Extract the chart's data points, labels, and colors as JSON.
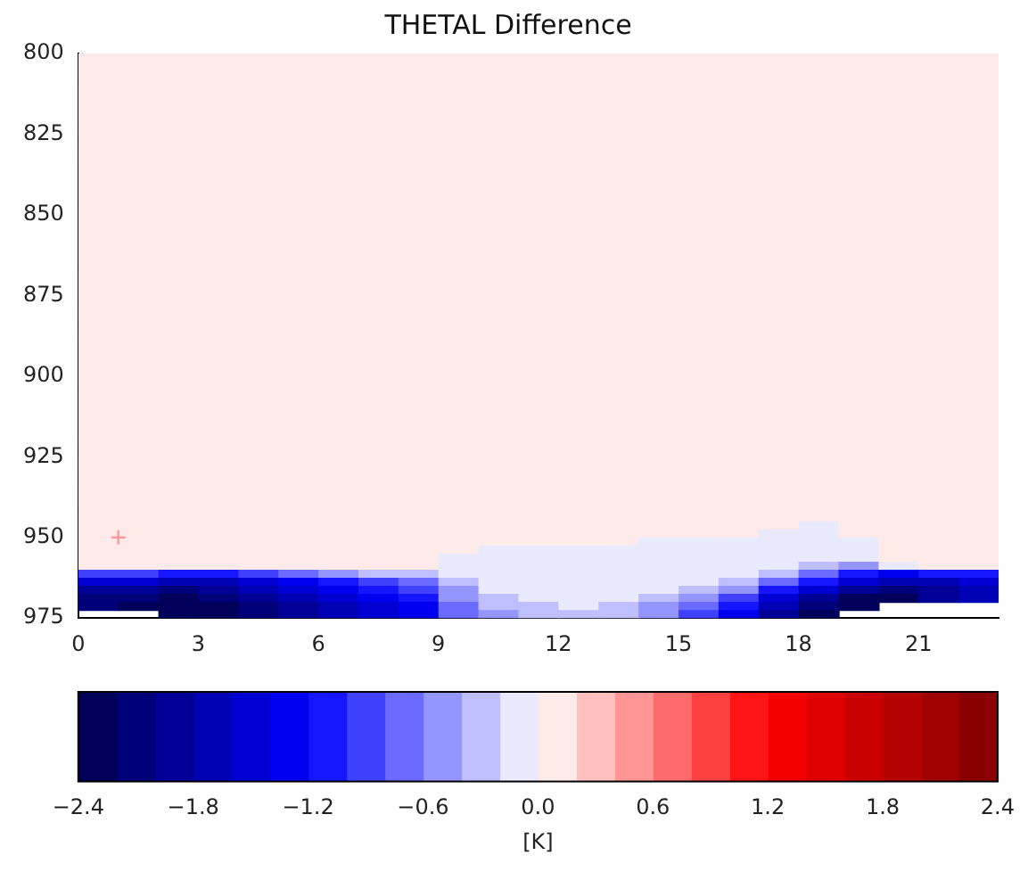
{
  "chart_data": {
    "type": "heatmap",
    "title": "THETAL Difference",
    "clabel": "[K]",
    "x": [
      0.5,
      1.5,
      2.5,
      3.5,
      4.5,
      5.5,
      6.5,
      7.5,
      8.5,
      9.5,
      10.5,
      11.5,
      12.5,
      13.5,
      14.5,
      15.5,
      16.5,
      17.5,
      18.5,
      19.5,
      20.5,
      21.5,
      22.5
    ],
    "y": [
      801.25,
      803.75,
      806.25,
      808.75,
      811.25,
      813.75,
      816.25,
      818.75,
      821.25,
      823.75,
      826.25,
      828.75,
      831.25,
      833.75,
      836.25,
      838.75,
      841.25,
      843.75,
      846.25,
      848.75,
      851.25,
      853.75,
      856.25,
      858.75,
      861.25,
      863.75,
      866.25,
      868.75,
      871.25,
      873.75,
      876.25,
      878.75,
      881.25,
      883.75,
      886.25,
      888.75,
      891.25,
      893.75,
      896.25,
      898.75,
      901.25,
      903.75,
      906.25,
      908.75,
      911.25,
      913.75,
      916.25,
      918.75,
      921.25,
      923.75,
      926.25,
      928.75,
      931.25,
      933.75,
      936.25,
      938.75,
      941.25,
      943.75,
      946.25,
      948.75,
      951.25,
      953.75,
      956.25,
      958.75,
      961.25,
      963.75,
      966.25,
      968.75,
      971.25,
      973.75
    ],
    "xlim": [
      0,
      23
    ],
    "xticks": [
      0,
      3,
      6,
      9,
      12,
      15,
      18,
      21
    ],
    "ylim": [
      975,
      800
    ],
    "yticks": [
      800,
      825,
      850,
      875,
      900,
      925,
      950,
      975
    ],
    "clim": [
      -2.4,
      2.4
    ],
    "cticks": [
      {
        "value": -2.4,
        "label": "−2.4"
      },
      {
        "value": -1.8,
        "label": "−1.8"
      },
      {
        "value": -1.2,
        "label": "−1.2"
      },
      {
        "value": -0.6,
        "label": "−0.6"
      },
      {
        "value": 0,
        "label": "0.0"
      },
      0.6,
      1.2,
      1.8,
      2.4
    ],
    "marker": "cross",
    "series": [
      {
        "type": "scatter",
        "x": [
          1
        ],
        "values": [
          950
        ],
        "color": "#ff9999"
      }
    ],
    "cells": [
      [
        0.1,
        0.1,
        0.1,
        0.1,
        0.1,
        0.1,
        0.1,
        0.1,
        0.1,
        0.1,
        0.1,
        0.1,
        0.1,
        0.1,
        0.1,
        0.1,
        0.1,
        0.1,
        0.1,
        0.1,
        0.1,
        0.1,
        0.1
      ],
      [
        0.1,
        0.1,
        0.1,
        0.1,
        0.1,
        0.1,
        0.1,
        0.1,
        0.1,
        0.1,
        0.1,
        0.1,
        0.1,
        0.1,
        0.1,
        0.1,
        0.1,
        0.1,
        0.1,
        0.1,
        0.1,
        0.1,
        0.1
      ],
      [
        0.1,
        0.1,
        0.1,
        0.1,
        0.1,
        0.1,
        0.1,
        0.1,
        0.1,
        0.1,
        0.1,
        0.1,
        0.1,
        0.1,
        0.1,
        0.1,
        0.1,
        0.1,
        0.1,
        0.1,
        0.1,
        0.1,
        0.1
      ],
      [
        0.1,
        0.1,
        0.1,
        0.1,
        0.1,
        0.1,
        0.1,
        0.1,
        0.1,
        0.1,
        0.1,
        0.1,
        0.1,
        0.1,
        0.1,
        0.1,
        0.1,
        0.1,
        0.1,
        0.1,
        0.1,
        0.1,
        0.1
      ],
      [
        0.1,
        0.1,
        0.1,
        0.1,
        0.1,
        0.1,
        0.1,
        0.1,
        0.1,
        0.1,
        0.1,
        0.1,
        0.1,
        0.1,
        0.1,
        0.1,
        0.1,
        0.1,
        0.1,
        0.1,
        0.1,
        0.1,
        0.1
      ],
      [
        0.1,
        0.1,
        0.1,
        0.1,
        0.1,
        0.1,
        0.1,
        0.1,
        0.1,
        0.1,
        0.1,
        0.1,
        0.1,
        0.1,
        0.1,
        0.1,
        0.1,
        0.1,
        0.1,
        0.1,
        0.1,
        0.1,
        0.1
      ],
      [
        0.1,
        0.1,
        0.1,
        0.1,
        0.1,
        0.1,
        0.1,
        0.1,
        0.1,
        0.1,
        0.1,
        0.1,
        0.1,
        0.1,
        0.1,
        0.1,
        0.1,
        0.1,
        0.1,
        0.1,
        0.1,
        0.1,
        0.1
      ],
      [
        0.1,
        0.1,
        0.1,
        0.1,
        0.1,
        0.1,
        0.1,
        0.1,
        0.1,
        0.1,
        0.1,
        0.1,
        0.1,
        0.1,
        0.1,
        0.1,
        0.1,
        0.1,
        0.1,
        0.1,
        0.1,
        0.1,
        0.1
      ],
      [
        0.1,
        0.1,
        0.1,
        0.1,
        0.1,
        0.1,
        0.1,
        0.1,
        0.1,
        0.1,
        0.1,
        0.1,
        0.1,
        0.1,
        0.1,
        0.1,
        0.1,
        0.1,
        0.1,
        0.1,
        0.1,
        0.1,
        0.1
      ],
      [
        0.1,
        0.1,
        0.1,
        0.1,
        0.1,
        0.1,
        0.1,
        0.1,
        0.1,
        0.1,
        0.1,
        0.1,
        0.1,
        0.1,
        0.1,
        0.1,
        0.1,
        0.1,
        0.1,
        0.1,
        0.1,
        0.1,
        0.1
      ],
      [
        0.1,
        0.1,
        0.1,
        0.1,
        0.1,
        0.1,
        0.1,
        0.1,
        0.1,
        0.1,
        0.1,
        0.1,
        0.1,
        0.1,
        0.1,
        0.1,
        0.1,
        0.1,
        0.1,
        0.1,
        0.1,
        0.1,
        0.1
      ],
      [
        0.1,
        0.1,
        0.1,
        0.1,
        0.1,
        0.1,
        0.1,
        0.1,
        0.1,
        0.1,
        0.1,
        0.1,
        0.1,
        0.1,
        0.1,
        0.1,
        0.1,
        0.1,
        0.1,
        0.1,
        0.1,
        0.1,
        0.1
      ],
      [
        0.1,
        0.1,
        0.1,
        0.1,
        0.1,
        0.1,
        0.1,
        0.1,
        0.1,
        0.1,
        0.1,
        0.1,
        0.1,
        0.1,
        0.1,
        0.1,
        0.1,
        0.1,
        0.1,
        0.1,
        0.1,
        0.1,
        0.1
      ],
      [
        0.1,
        0.1,
        0.1,
        0.1,
        0.1,
        0.1,
        0.1,
        0.1,
        0.1,
        0.1,
        0.1,
        0.1,
        0.1,
        0.1,
        0.1,
        0.1,
        0.1,
        0.1,
        0.1,
        0.1,
        0.1,
        0.1,
        0.1
      ],
      [
        0.1,
        0.1,
        0.1,
        0.1,
        0.1,
        0.1,
        0.1,
        0.1,
        0.1,
        0.1,
        0.1,
        0.1,
        0.1,
        0.1,
        0.1,
        0.1,
        0.1,
        0.1,
        0.1,
        0.1,
        0.1,
        0.1,
        0.1
      ],
      [
        0.1,
        0.1,
        0.1,
        0.1,
        0.1,
        0.1,
        0.1,
        0.1,
        0.1,
        0.1,
        0.1,
        0.1,
        0.1,
        0.1,
        0.1,
        0.1,
        0.1,
        0.1,
        0.1,
        0.1,
        0.1,
        0.1,
        0.1
      ],
      [
        0.1,
        0.1,
        0.1,
        0.1,
        0.1,
        0.1,
        0.1,
        0.1,
        0.1,
        0.1,
        0.1,
        0.1,
        0.1,
        0.1,
        0.1,
        0.1,
        0.1,
        0.1,
        0.1,
        0.1,
        0.1,
        0.1,
        0.1
      ],
      [
        0.1,
        0.1,
        0.1,
        0.1,
        0.1,
        0.1,
        0.1,
        0.1,
        0.1,
        0.1,
        0.1,
        0.1,
        0.1,
        0.1,
        0.1,
        0.1,
        0.1,
        0.1,
        0.1,
        0.1,
        0.1,
        0.1,
        0.1
      ],
      [
        0.1,
        0.1,
        0.1,
        0.1,
        0.1,
        0.1,
        0.1,
        0.1,
        0.1,
        0.1,
        0.1,
        0.1,
        0.1,
        0.1,
        0.1,
        0.1,
        0.1,
        0.1,
        0.1,
        0.1,
        0.1,
        0.1,
        0.1
      ],
      [
        0.1,
        0.1,
        0.1,
        0.1,
        0.1,
        0.1,
        0.1,
        0.1,
        0.1,
        0.1,
        0.1,
        0.1,
        0.1,
        0.1,
        0.1,
        0.1,
        0.1,
        0.1,
        0.1,
        0.1,
        0.1,
        0.1,
        0.1
      ],
      [
        0.1,
        0.1,
        0.1,
        0.1,
        0.1,
        0.1,
        0.1,
        0.1,
        0.1,
        0.1,
        0.1,
        0.1,
        0.1,
        0.1,
        0.1,
        0.1,
        0.1,
        0.1,
        0.1,
        0.1,
        0.1,
        0.1,
        0.1
      ],
      [
        0.1,
        0.1,
        0.1,
        0.1,
        0.1,
        0.1,
        0.1,
        0.1,
        0.1,
        0.1,
        0.1,
        0.1,
        0.1,
        0.1,
        0.1,
        0.1,
        0.1,
        0.1,
        0.1,
        0.1,
        0.1,
        0.1,
        0.1
      ],
      [
        0.1,
        0.1,
        0.1,
        0.1,
        0.1,
        0.1,
        0.1,
        0.1,
        0.1,
        0.1,
        0.1,
        0.1,
        0.1,
        0.1,
        0.1,
        0.1,
        0.1,
        0.1,
        0.1,
        0.1,
        0.1,
        0.1,
        0.1
      ],
      [
        0.1,
        0.1,
        0.1,
        0.1,
        0.1,
        0.1,
        0.1,
        0.1,
        0.1,
        0.1,
        0.1,
        0.1,
        0.1,
        0.1,
        0.1,
        0.1,
        0.1,
        0.1,
        0.1,
        0.1,
        0.1,
        0.1,
        0.1
      ],
      [
        0.1,
        0.1,
        0.1,
        0.1,
        0.1,
        0.1,
        0.1,
        0.1,
        0.1,
        0.1,
        0.1,
        0.1,
        0.1,
        0.1,
        0.1,
        0.1,
        0.1,
        0.1,
        0.1,
        0.1,
        0.1,
        0.1,
        0.1
      ],
      [
        0.1,
        0.1,
        0.1,
        0.1,
        0.1,
        0.1,
        0.1,
        0.1,
        0.1,
        0.1,
        0.1,
        0.1,
        0.1,
        0.1,
        0.1,
        0.1,
        0.1,
        0.1,
        0.1,
        0.1,
        0.1,
        0.1,
        0.1
      ],
      [
        0.1,
        0.1,
        0.1,
        0.1,
        0.1,
        0.1,
        0.1,
        0.1,
        0.1,
        0.1,
        0.1,
        0.1,
        0.1,
        0.1,
        0.1,
        0.1,
        0.1,
        0.1,
        0.1,
        0.1,
        0.1,
        0.1,
        0.1
      ],
      [
        0.1,
        0.1,
        0.1,
        0.1,
        0.1,
        0.1,
        0.1,
        0.1,
        0.1,
        0.1,
        0.1,
        0.1,
        0.1,
        0.1,
        0.1,
        0.1,
        0.1,
        0.1,
        0.1,
        0.1,
        0.1,
        0.1,
        0.1
      ],
      [
        0.1,
        0.1,
        0.1,
        0.1,
        0.1,
        0.1,
        0.1,
        0.1,
        0.1,
        0.1,
        0.1,
        0.1,
        0.1,
        0.1,
        0.1,
        0.1,
        0.1,
        0.1,
        0.1,
        0.1,
        0.1,
        0.1,
        0.1
      ],
      [
        0.1,
        0.1,
        0.1,
        0.1,
        0.1,
        0.1,
        0.1,
        0.1,
        0.1,
        0.1,
        0.1,
        0.1,
        0.1,
        0.1,
        0.1,
        0.1,
        0.1,
        0.1,
        0.1,
        0.1,
        0.1,
        0.1,
        0.1
      ],
      [
        0.1,
        0.1,
        0.1,
        0.1,
        0.1,
        0.1,
        0.1,
        0.1,
        0.1,
        0.1,
        0.1,
        0.1,
        0.1,
        0.1,
        0.1,
        0.1,
        0.1,
        0.1,
        0.1,
        0.1,
        0.1,
        0.1,
        0.1
      ],
      [
        0.1,
        0.1,
        0.1,
        0.1,
        0.1,
        0.1,
        0.1,
        0.1,
        0.1,
        0.1,
        0.1,
        0.1,
        0.1,
        0.1,
        0.1,
        0.1,
        0.1,
        0.1,
        0.1,
        0.1,
        0.1,
        0.1,
        0.1
      ],
      [
        0.1,
        0.1,
        0.1,
        0.1,
        0.1,
        0.1,
        0.1,
        0.1,
        0.1,
        0.1,
        0.1,
        0.1,
        0.1,
        0.1,
        0.1,
        0.1,
        0.1,
        0.1,
        0.1,
        0.1,
        0.1,
        0.1,
        0.1
      ],
      [
        0.1,
        0.1,
        0.1,
        0.1,
        0.1,
        0.1,
        0.1,
        0.1,
        0.1,
        0.1,
        0.1,
        0.1,
        0.1,
        0.1,
        0.1,
        0.1,
        0.1,
        0.1,
        0.1,
        0.1,
        0.1,
        0.1,
        0.1
      ],
      [
        0.1,
        0.1,
        0.1,
        0.1,
        0.1,
        0.1,
        0.1,
        0.1,
        0.1,
        0.1,
        0.1,
        0.1,
        0.1,
        0.1,
        0.1,
        0.1,
        0.1,
        0.1,
        0.1,
        0.1,
        0.1,
        0.1,
        0.1
      ],
      [
        0.1,
        0.1,
        0.1,
        0.1,
        0.1,
        0.1,
        0.1,
        0.1,
        0.1,
        0.1,
        0.1,
        0.1,
        0.1,
        0.1,
        0.1,
        0.1,
        0.1,
        0.1,
        0.1,
        0.1,
        0.1,
        0.1,
        0.1
      ],
      [
        0.1,
        0.1,
        0.1,
        0.1,
        0.1,
        0.1,
        0.1,
        0.1,
        0.1,
        0.1,
        0.1,
        0.1,
        0.1,
        0.1,
        0.1,
        0.1,
        0.1,
        0.1,
        0.1,
        0.1,
        0.1,
        0.1,
        0.1
      ],
      [
        0.1,
        0.1,
        0.1,
        0.1,
        0.1,
        0.1,
        0.1,
        0.1,
        0.1,
        0.1,
        0.1,
        0.1,
        0.1,
        0.1,
        0.1,
        0.1,
        0.1,
        0.1,
        0.1,
        0.1,
        0.1,
        0.1,
        0.1
      ],
      [
        0.1,
        0.1,
        0.1,
        0.1,
        0.1,
        0.1,
        0.1,
        0.1,
        0.1,
        0.1,
        0.1,
        0.1,
        0.1,
        0.1,
        0.1,
        0.1,
        0.1,
        0.1,
        0.1,
        0.1,
        0.1,
        0.1,
        0.1
      ],
      [
        0.1,
        0.1,
        0.1,
        0.1,
        0.1,
        0.1,
        0.1,
        0.1,
        0.1,
        0.1,
        0.1,
        0.1,
        0.1,
        0.1,
        0.1,
        0.1,
        0.1,
        0.1,
        0.1,
        0.1,
        0.1,
        0.1,
        0.1
      ],
      [
        0.1,
        0.1,
        0.1,
        0.1,
        0.1,
        0.1,
        0.1,
        0.1,
        0.1,
        0.1,
        0.1,
        0.1,
        0.1,
        0.1,
        0.1,
        0.1,
        0.1,
        0.1,
        0.1,
        0.1,
        0.1,
        0.1,
        0.1
      ],
      [
        0.1,
        0.1,
        0.1,
        0.1,
        0.1,
        0.1,
        0.1,
        0.1,
        0.1,
        0.1,
        0.1,
        0.1,
        0.1,
        0.1,
        0.1,
        0.1,
        0.1,
        0.1,
        0.1,
        0.1,
        0.1,
        0.1,
        0.1
      ],
      [
        0.1,
        0.1,
        0.1,
        0.1,
        0.1,
        0.1,
        0.1,
        0.1,
        0.1,
        0.1,
        0.1,
        0.1,
        0.1,
        0.1,
        0.1,
        0.1,
        0.1,
        0.1,
        0.1,
        0.1,
        0.1,
        0.1,
        0.1
      ],
      [
        0.1,
        0.1,
        0.1,
        0.1,
        0.1,
        0.1,
        0.1,
        0.1,
        0.1,
        0.1,
        0.1,
        0.1,
        0.1,
        0.1,
        0.1,
        0.1,
        0.1,
        0.1,
        0.1,
        0.1,
        0.1,
        0.1,
        0.1
      ],
      [
        0.1,
        0.1,
        0.1,
        0.1,
        0.1,
        0.1,
        0.1,
        0.1,
        0.1,
        0.1,
        0.1,
        0.1,
        0.1,
        0.1,
        0.1,
        0.1,
        0.1,
        0.1,
        0.1,
        0.1,
        0.1,
        0.1,
        0.1
      ],
      [
        0.1,
        0.1,
        0.1,
        0.1,
        0.1,
        0.1,
        0.1,
        0.1,
        0.1,
        0.1,
        0.1,
        0.1,
        0.1,
        0.1,
        0.1,
        0.1,
        0.1,
        0.1,
        0.1,
        0.1,
        0.1,
        0.1,
        0.1
      ],
      [
        0.1,
        0.1,
        0.1,
        0.1,
        0.1,
        0.1,
        0.1,
        0.1,
        0.1,
        0.1,
        0.1,
        0.1,
        0.1,
        0.1,
        0.1,
        0.1,
        0.1,
        0.1,
        0.1,
        0.1,
        0.1,
        0.1,
        0.1
      ],
      [
        0.1,
        0.1,
        0.1,
        0.1,
        0.1,
        0.1,
        0.1,
        0.1,
        0.1,
        0.1,
        0.1,
        0.1,
        0.1,
        0.1,
        0.1,
        0.1,
        0.1,
        0.1,
        0.1,
        0.1,
        0.1,
        0.1,
        0.1
      ],
      [
        0.1,
        0.1,
        0.1,
        0.1,
        0.1,
        0.1,
        0.1,
        0.1,
        0.1,
        0.1,
        0.1,
        0.1,
        0.1,
        0.1,
        0.1,
        0.1,
        0.1,
        0.1,
        0.1,
        0.1,
        0.1,
        0.1,
        0.1
      ],
      [
        0.1,
        0.1,
        0.1,
        0.1,
        0.1,
        0.1,
        0.1,
        0.1,
        0.1,
        0.1,
        0.1,
        0.1,
        0.1,
        0.1,
        0.1,
        0.1,
        0.1,
        0.1,
        0.1,
        0.1,
        0.1,
        0.1,
        0.1
      ],
      [
        0.1,
        0.1,
        0.1,
        0.1,
        0.1,
        0.1,
        0.1,
        0.1,
        0.1,
        0.1,
        0.1,
        0.1,
        0.1,
        0.1,
        0.1,
        0.1,
        0.1,
        0.1,
        0.1,
        0.1,
        0.1,
        0.1,
        0.1
      ],
      [
        0.1,
        0.1,
        0.1,
        0.1,
        0.1,
        0.1,
        0.1,
        0.1,
        0.1,
        0.1,
        0.1,
        0.1,
        0.1,
        0.1,
        0.1,
        0.1,
        0.1,
        0.1,
        0.1,
        0.1,
        0.1,
        0.1,
        0.1
      ],
      [
        0.1,
        0.1,
        0.1,
        0.1,
        0.1,
        0.1,
        0.1,
        0.1,
        0.1,
        0.1,
        0.1,
        0.1,
        0.1,
        0.1,
        0.1,
        0.1,
        0.1,
        0.1,
        0.1,
        0.1,
        0.1,
        0.1,
        0.1
      ],
      [
        0.1,
        0.1,
        0.1,
        0.1,
        0.1,
        0.1,
        0.1,
        0.1,
        0.1,
        0.1,
        0.1,
        0.1,
        0.1,
        0.1,
        0.1,
        0.1,
        0.1,
        0.1,
        0.1,
        0.1,
        0.1,
        0.1,
        0.1
      ],
      [
        0.1,
        0.1,
        0.1,
        0.1,
        0.1,
        0.1,
        0.1,
        0.1,
        0.1,
        0.1,
        0.1,
        0.1,
        0.1,
        0.1,
        0.1,
        0.1,
        0.1,
        0.1,
        0.1,
        0.1,
        0.1,
        0.1,
        0.1
      ],
      [
        0.1,
        0.1,
        0.1,
        0.1,
        0.1,
        0.1,
        0.1,
        0.1,
        0.1,
        0.1,
        0.1,
        0.1,
        0.1,
        0.1,
        0.1,
        0.1,
        0.1,
        0.1,
        0.1,
        0.1,
        0.1,
        0.1,
        0.1
      ],
      [
        0.1,
        0.1,
        0.1,
        0.1,
        0.1,
        0.1,
        0.1,
        0.1,
        0.1,
        0.1,
        0.1,
        0.1,
        0.1,
        0.1,
        0.1,
        0.1,
        0.1,
        0.1,
        0.1,
        0.1,
        0.1,
        0.1,
        0.1
      ],
      [
        0.1,
        0.1,
        0.1,
        0.1,
        0.1,
        0.1,
        0.1,
        0.1,
        0.1,
        0.1,
        0.1,
        0.1,
        0.1,
        0.1,
        0.1,
        0.1,
        0.1,
        0.1,
        0.1,
        0.1,
        0.1,
        0.1,
        0.1
      ],
      [
        0.1,
        0.1,
        0.1,
        0.1,
        0.1,
        0.1,
        0.1,
        0.1,
        0.1,
        0.1,
        0.1,
        0.1,
        0.1,
        0.1,
        0.1,
        0.1,
        0.1,
        0.1,
        -0.1,
        0.1,
        0.1,
        0.1,
        0.1
      ],
      [
        0.1,
        0.1,
        0.1,
        0.1,
        0.1,
        0.1,
        0.1,
        0.1,
        0.1,
        0.1,
        0.1,
        0.1,
        0.1,
        0.1,
        0.1,
        0.1,
        0.1,
        -0.1,
        -0.1,
        0.1,
        0.1,
        0.1,
        0.1
      ],
      [
        0.1,
        0.1,
        0.1,
        0.1,
        0.1,
        0.1,
        0.1,
        0.1,
        0.1,
        0.1,
        0.1,
        0.1,
        0.1,
        0.1,
        -0.1,
        -0.1,
        -0.1,
        -0.1,
        -0.1,
        -0.1,
        0.1,
        0.1,
        0.1
      ],
      [
        0.1,
        0.1,
        0.1,
        0.1,
        0.1,
        0.1,
        0.1,
        0.1,
        0.1,
        0.1,
        -0.1,
        -0.1,
        -0.1,
        -0.1,
        -0.1,
        -0.1,
        -0.1,
        -0.1,
        -0.1,
        -0.1,
        0.1,
        0.1,
        0.1
      ],
      [
        0.1,
        0.1,
        0.1,
        0.1,
        0.1,
        0.1,
        0.1,
        0.1,
        0.1,
        -0.1,
        -0.1,
        -0.1,
        -0.1,
        -0.1,
        -0.1,
        -0.1,
        -0.1,
        -0.1,
        -0.1,
        -0.1,
        0.1,
        0.1,
        0.1
      ],
      [
        0.1,
        0.1,
        0.1,
        0.1,
        0.1,
        0.1,
        0.1,
        0.1,
        0.1,
        -0.1,
        -0.1,
        -0.1,
        -0.1,
        -0.1,
        -0.1,
        -0.1,
        -0.1,
        -0.1,
        -0.3,
        -0.5,
        -0.1,
        0.1,
        0.1
      ],
      [
        -0.9,
        -0.9,
        -1.1,
        -1.1,
        -0.9,
        -0.7,
        -0.5,
        -0.3,
        -0.3,
        -0.1,
        -0.1,
        -0.1,
        -0.1,
        -0.1,
        -0.1,
        -0.1,
        -0.1,
        -0.3,
        -0.7,
        -1.1,
        -1.3,
        -1.1,
        -1.1
      ],
      [
        -1.5,
        -1.5,
        -1.7,
        -1.7,
        -1.5,
        -1.3,
        -1.1,
        -0.9,
        -0.7,
        -0.3,
        -0.1,
        -0.1,
        -0.1,
        -0.1,
        -0.1,
        -0.1,
        -0.3,
        -0.7,
        -1.1,
        -1.5,
        -1.7,
        -1.7,
        -1.5
      ],
      [
        -1.9,
        -1.9,
        -2.1,
        -1.9,
        -1.7,
        -1.5,
        -1.3,
        -1.1,
        -0.9,
        -0.5,
        -0.1,
        -0.1,
        -0.1,
        -0.1,
        -0.1,
        -0.3,
        -0.5,
        -1.1,
        -1.5,
        -1.9,
        -2.1,
        -1.9,
        -1.7
      ],
      [
        -2.1,
        -2.1,
        -2.3,
        -2.1,
        -1.9,
        -1.7,
        -1.5,
        -1.3,
        -1.1,
        -0.5,
        -0.3,
        -0.1,
        -0.1,
        -0.1,
        -0.3,
        -0.5,
        -0.9,
        -1.5,
        -1.9,
        -2.3,
        -2.3,
        -1.9,
        -1.7
      ],
      [
        -2.1,
        -2.3,
        -2.3,
        -2.3,
        -2.1,
        -1.9,
        -1.7,
        -1.5,
        -1.3,
        -0.7,
        -0.3,
        -0.3,
        -0.1,
        -0.3,
        -0.5,
        -0.7,
        -1.1,
        -1.7,
        -2.1,
        -2.3,
        null,
        null,
        null
      ],
      [
        null,
        null,
        -2.3,
        -2.3,
        -2.1,
        -1.9,
        -1.7,
        -1.5,
        -1.3,
        -0.7,
        -0.5,
        -0.3,
        -0.3,
        -0.3,
        -0.5,
        -0.9,
        -1.3,
        -1.9,
        -2.3,
        null,
        null,
        null,
        null
      ]
    ]
  }
}
